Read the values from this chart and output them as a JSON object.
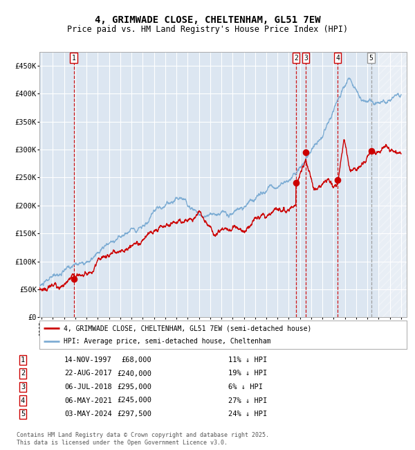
{
  "title": "4, GRIMWADE CLOSE, CHELTENHAM, GL51 7EW",
  "subtitle": "Price paid vs. HM Land Registry's House Price Index (HPI)",
  "title_fontsize": 10,
  "subtitle_fontsize": 8.5,
  "ylim": [
    0,
    475000
  ],
  "xlim_start": 1994.8,
  "xlim_end": 2027.5,
  "yticks": [
    0,
    50000,
    100000,
    150000,
    200000,
    250000,
    300000,
    350000,
    400000,
    450000
  ],
  "ytick_labels": [
    "£0",
    "£50K",
    "£100K",
    "£150K",
    "£200K",
    "£250K",
    "£300K",
    "£350K",
    "£400K",
    "£450K"
  ],
  "bg_color": "#dce6f1",
  "grid_color": "#ffffff",
  "hpi_color": "#7eadd4",
  "price_color": "#cc0000",
  "transactions": [
    {
      "num": 1,
      "date_dec": 1997.87,
      "price": 68000,
      "label": "1",
      "vline": "red"
    },
    {
      "num": 2,
      "date_dec": 2017.64,
      "price": 240000,
      "label": "2",
      "vline": "red"
    },
    {
      "num": 3,
      "date_dec": 2018.51,
      "price": 295000,
      "label": "3",
      "vline": "red"
    },
    {
      "num": 4,
      "date_dec": 2021.34,
      "price": 245000,
      "label": "4",
      "vline": "red"
    },
    {
      "num": 5,
      "date_dec": 2024.33,
      "price": 297500,
      "label": "5",
      "vline": "gray"
    }
  ],
  "legend_entries": [
    "4, GRIMWADE CLOSE, CHELTENHAM, GL51 7EW (semi-detached house)",
    "HPI: Average price, semi-detached house, Cheltenham"
  ],
  "table_rows": [
    {
      "num": "1",
      "date": "14-NOV-1997",
      "price": "£68,000",
      "hpi": "11% ↓ HPI"
    },
    {
      "num": "2",
      "date": "22-AUG-2017",
      "price": "£240,000",
      "hpi": "19% ↓ HPI"
    },
    {
      "num": "3",
      "date": "06-JUL-2018",
      "price": "£295,000",
      "hpi": "6% ↓ HPI"
    },
    {
      "num": "4",
      "date": "06-MAY-2021",
      "price": "£245,000",
      "hpi": "27% ↓ HPI"
    },
    {
      "num": "5",
      "date": "03-MAY-2024",
      "price": "£297,500",
      "hpi": "24% ↓ HPI"
    }
  ],
  "footnote": "Contains HM Land Registry data © Crown copyright and database right 2025.\nThis data is licensed under the Open Government Licence v3.0.",
  "xticks": [
    1995,
    1996,
    1997,
    1998,
    1999,
    2000,
    2001,
    2002,
    2003,
    2004,
    2005,
    2006,
    2007,
    2008,
    2009,
    2010,
    2011,
    2012,
    2013,
    2014,
    2015,
    2016,
    2017,
    2018,
    2019,
    2020,
    2021,
    2022,
    2023,
    2024,
    2025,
    2026,
    2027
  ]
}
